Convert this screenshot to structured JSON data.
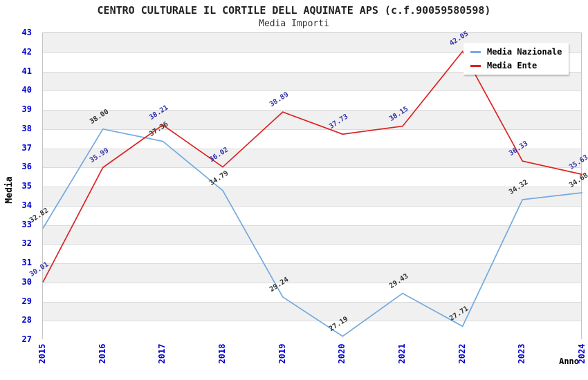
{
  "chart_data": {
    "type": "line",
    "title": "CENTRO CULTURALE IL CORTILE DELL AQUINATE APS (c.f.90059580598)",
    "subtitle": "Media Importi",
    "xlabel": "Anno",
    "ylabel": "Media",
    "x": [
      2015,
      2016,
      2017,
      2018,
      2019,
      2020,
      2021,
      2022,
      2023,
      2024
    ],
    "series": [
      {
        "name": "Media Nazionale",
        "color": "#74A9DF",
        "label_color": "#333333",
        "values": [
          32.82,
          38.0,
          37.36,
          34.79,
          29.24,
          27.19,
          29.43,
          27.71,
          34.32,
          34.68
        ]
      },
      {
        "name": "Media Ente",
        "color": "#DD2222",
        "label_color": "#3333AA",
        "values": [
          30.01,
          35.99,
          38.21,
          36.02,
          38.89,
          37.73,
          38.15,
          42.05,
          36.33,
          35.63
        ]
      }
    ],
    "ylim": [
      27,
      43
    ],
    "ytick_step": 1,
    "grid": true,
    "band_colors": [
      "#ffffff",
      "#f0f0f0"
    ],
    "grid_color": "#dbdbdb",
    "tick_label_color": "#0000CC",
    "legend_position": "top-right"
  }
}
